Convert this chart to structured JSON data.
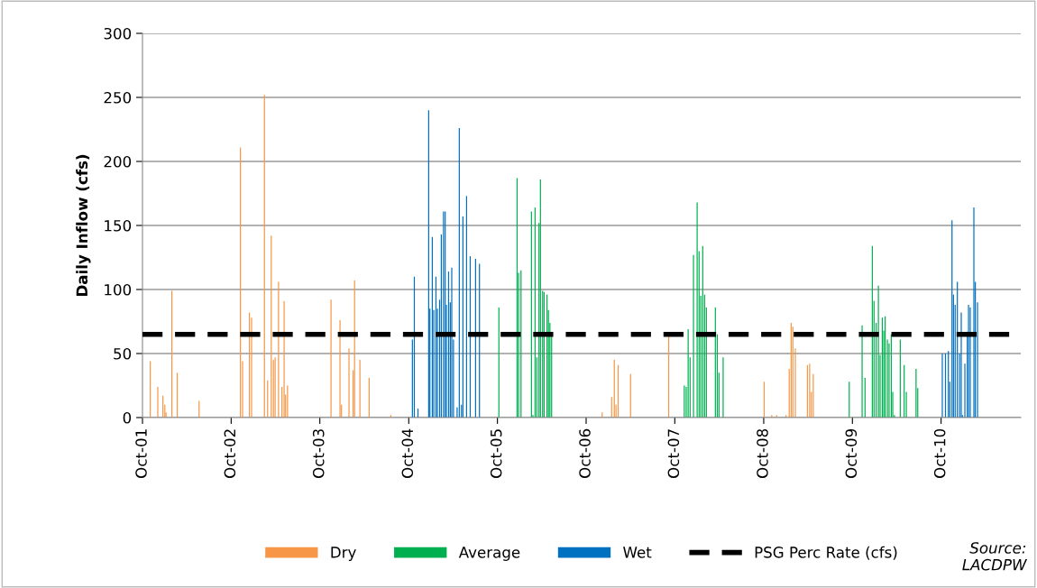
{
  "chart_data": {
    "type": "bar",
    "ylabel": "Daily Inflow (cfs)",
    "series": [
      {
        "name": "Dry",
        "color": "#f79646",
        "x": [
          "2001-11-02",
          "2001-12-03",
          "2001-12-24",
          "2002-01-01",
          "2002-01-06",
          "2002-01-30",
          "2002-02-21",
          "2002-05-22",
          "2002-11-08",
          "2002-11-17",
          "2002-12-15",
          "2002-12-24",
          "2003-02-15",
          "2003-02-28",
          "2003-03-15",
          "2003-03-24",
          "2003-03-31",
          "2003-04-14",
          "2003-04-28",
          "2003-05-07",
          "2003-05-13",
          "2003-05-21",
          "2003-11-16",
          "2003-12-23",
          "2003-12-29",
          "2004-01-29",
          "2004-02-15",
          "2004-02-21",
          "2004-03-14",
          "2004-04-21",
          "2004-07-19",
          "2006-12-06",
          "2007-01-14",
          "2007-01-25",
          "2007-02-01",
          "2007-02-10",
          "2007-04-02",
          "2007-09-06",
          "2008-10-03",
          "2008-11-03",
          "2008-11-23",
          "2009-01-01",
          "2009-01-14",
          "2009-01-22",
          "2009-01-29",
          "2009-02-08",
          "2009-03-30",
          "2009-04-08",
          "2009-04-15",
          "2009-04-23"
        ],
        "values": [
          44,
          24,
          17,
          10,
          4,
          99,
          35,
          13,
          211,
          44,
          82,
          78,
          252,
          29,
          142,
          45,
          47,
          106,
          24,
          91,
          18,
          25,
          92,
          76,
          10,
          54,
          37,
          107,
          45,
          31,
          2,
          4,
          16,
          45,
          10,
          41,
          34,
          64,
          28,
          2,
          2,
          2,
          38,
          74,
          71,
          54,
          41,
          42,
          20,
          34
        ]
      },
      {
        "name": "Average",
        "color": "#00b050",
        "x": [
          "2005-10-07",
          "2005-12-21",
          "2005-12-27",
          "2006-01-06",
          "2006-02-18",
          "2006-02-24",
          "2006-03-05",
          "2006-03-12",
          "2006-03-21",
          "2006-03-27",
          "2006-04-05",
          "2006-04-11",
          "2006-04-23",
          "2006-04-29",
          "2006-05-05",
          "2006-05-12",
          "2007-11-09",
          "2007-11-17",
          "2007-11-25",
          "2007-12-03",
          "2007-12-17",
          "2008-01-01",
          "2008-01-09",
          "2008-01-16",
          "2008-01-24",
          "2008-02-01",
          "2008-02-08",
          "2008-03-16",
          "2008-03-24",
          "2008-03-31",
          "2008-04-17",
          "2009-09-18",
          "2009-11-10",
          "2009-11-22",
          "2009-12-22",
          "2009-12-29",
          "2010-01-07",
          "2010-01-16",
          "2010-01-23",
          "2010-02-01",
          "2010-02-07",
          "2010-02-13",
          "2010-02-22",
          "2010-03-01",
          "2010-03-10",
          "2010-03-16",
          "2010-03-23",
          "2010-04-16",
          "2010-05-02",
          "2010-05-11",
          "2010-06-20",
          "2010-06-27"
        ],
        "values": [
          86,
          187,
          113,
          115,
          161,
          2,
          164,
          47,
          152,
          186,
          99,
          98,
          96,
          84,
          74,
          64,
          25,
          24,
          69,
          47,
          127,
          168,
          130,
          95,
          134,
          96,
          86,
          86,
          65,
          35,
          47,
          28,
          72,
          31,
          134,
          91,
          74,
          103,
          49,
          78,
          68,
          79,
          61,
          58,
          65,
          20,
          2,
          61,
          41,
          20,
          38,
          23
        ]
      },
      {
        "name": "Wet",
        "color": "#0070c0",
        "x": [
          "2004-10-16",
          "2004-10-24",
          "2004-11-08",
          "2004-12-22",
          "2004-12-27",
          "2005-01-06",
          "2005-01-12",
          "2005-01-21",
          "2005-01-27",
          "2005-02-05",
          "2005-02-12",
          "2005-02-21",
          "2005-02-28",
          "2005-03-05",
          "2005-03-14",
          "2005-03-21",
          "2005-03-27",
          "2005-04-03",
          "2005-04-18",
          "2005-04-27",
          "2005-05-06",
          "2005-05-12",
          "2005-05-27",
          "2005-06-11",
          "2005-07-03",
          "2005-07-19",
          "2010-10-06",
          "2010-10-19",
          "2010-10-31",
          "2010-11-06",
          "2010-11-15",
          "2010-11-21",
          "2010-11-28",
          "2010-12-07",
          "2010-12-16",
          "2010-12-23",
          "2010-12-28",
          "2011-01-07",
          "2011-01-17",
          "2011-01-22",
          "2011-01-29",
          "2011-02-13",
          "2011-02-19",
          "2011-02-28"
        ],
        "values": [
          61,
          110,
          7,
          240,
          85,
          141,
          84,
          110,
          85,
          92,
          143,
          161,
          161,
          88,
          114,
          90,
          117,
          61,
          8,
          226,
          10,
          157,
          173,
          126,
          124,
          120,
          50,
          50,
          52,
          28,
          154,
          96,
          88,
          106,
          50,
          82,
          2,
          42,
          67,
          88,
          86,
          164,
          106,
          90
        ]
      }
    ],
    "ref_lines": [
      {
        "axis": "y",
        "value": 65,
        "label": "PSG Perc Rate (cfs)",
        "color": "#000000",
        "line_style": "dashed"
      }
    ],
    "xlim": [
      "2001-10-01",
      "2011-08-25"
    ],
    "xticks": [
      {
        "value": "2001-10-01",
        "label": "Oct-01"
      },
      {
        "value": "2002-10-01",
        "label": "Oct-02"
      },
      {
        "value": "2003-10-01",
        "label": "Oct-03"
      },
      {
        "value": "2004-10-01",
        "label": "Oct-04"
      },
      {
        "value": "2005-10-01",
        "label": "Oct-05"
      },
      {
        "value": "2006-10-01",
        "label": "Oct-06"
      },
      {
        "value": "2007-10-01",
        "label": "Oct-07"
      },
      {
        "value": "2008-10-01",
        "label": "Oct-08"
      },
      {
        "value": "2009-10-01",
        "label": "Oct-09"
      },
      {
        "value": "2010-10-01",
        "label": "Oct-10"
      }
    ],
    "ylim": [
      0,
      300
    ],
    "yticks": [
      0,
      50,
      100,
      150,
      200,
      250,
      300
    ],
    "grid": "y",
    "legend": "bottom",
    "annotations": [
      "Source:\nLACDPW"
    ]
  }
}
